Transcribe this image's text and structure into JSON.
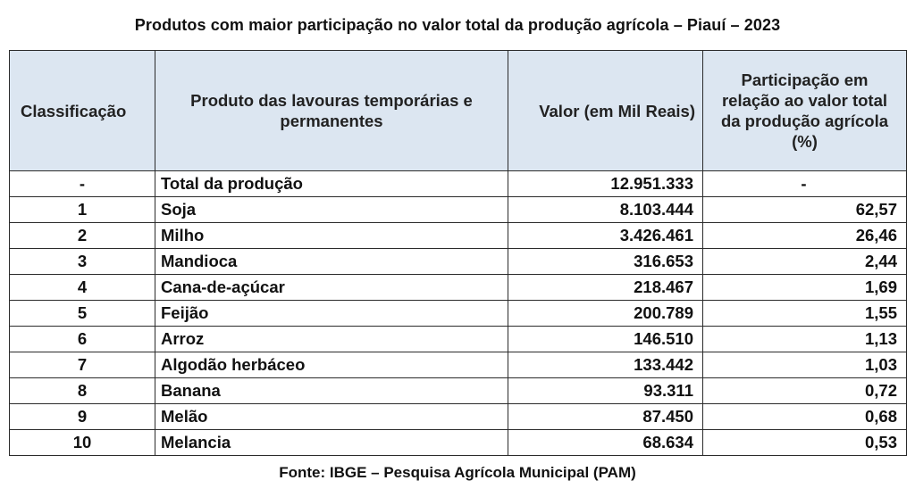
{
  "title": "Produtos com maior participação no valor total da produção agrícola – Piauí – 2023",
  "columns": {
    "classificacao": "Classificação",
    "produto": "Produto das lavouras temporárias e permanentes",
    "valor": "Valor (em Mil Reais)",
    "participacao": "Participação em relação ao valor total da produção agrícola (%)"
  },
  "rows": [
    {
      "rank": "-",
      "product": "Total da produção",
      "value": "12.951.333",
      "share": "-"
    },
    {
      "rank": "1",
      "product": "Soja",
      "value": "8.103.444",
      "share": "62,57"
    },
    {
      "rank": "2",
      "product": "Milho",
      "value": "3.426.461",
      "share": "26,46"
    },
    {
      "rank": "3",
      "product": "Mandioca",
      "value": "316.653",
      "share": "2,44"
    },
    {
      "rank": "4",
      "product": "Cana-de-açúcar",
      "value": "218.467",
      "share": "1,69"
    },
    {
      "rank": "5",
      "product": "Feijão",
      "value": "200.789",
      "share": "1,55"
    },
    {
      "rank": "6",
      "product": "Arroz",
      "value": "146.510",
      "share": "1,13"
    },
    {
      "rank": "7",
      "product": "Algodão herbáceo",
      "value": "133.442",
      "share": "1,03"
    },
    {
      "rank": "8",
      "product": "Banana",
      "value": "93.311",
      "share": "0,72"
    },
    {
      "rank": "9",
      "product": "Melão",
      "value": "87.450",
      "share": "0,68"
    },
    {
      "rank": "10",
      "product": "Melancia",
      "value": "68.634",
      "share": "0,53"
    }
  ],
  "source": "Fonte: IBGE – Pesquisa Agrícola Municipal (PAM)",
  "colors": {
    "header_bg": "#dce6f1",
    "border": "#2b2b2b"
  }
}
